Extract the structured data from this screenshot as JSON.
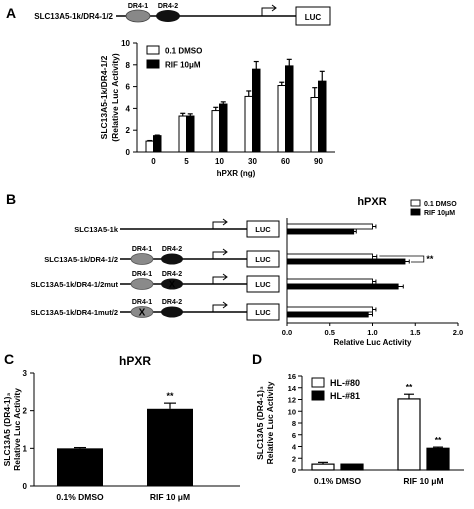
{
  "panels": {
    "A": {
      "letter": "A"
    },
    "B": {
      "letter": "B"
    },
    "C": {
      "letter": "C"
    },
    "D": {
      "letter": "D"
    }
  },
  "construct_a": {
    "name": "SLC13A5-1k/DR4-1/2",
    "dr1": "DR4-1",
    "dr2": "DR4-2",
    "reporter": "LUC"
  },
  "constructs_b": [
    {
      "name": "SLC13A5-1k",
      "dr1": "",
      "dr2": "",
      "mut1": false,
      "mut2": false
    },
    {
      "name": "SLC13A5-1k/DR4-1/2",
      "dr1": "DR4-1",
      "dr2": "DR4-2",
      "mut1": false,
      "mut2": false
    },
    {
      "name": "SLC13A5-1k/DR4-1/2mut",
      "dr1": "DR4-1",
      "dr2": "DR4-2",
      "mut1": false,
      "mut2": true
    },
    {
      "name": "SLC13A5-1k/DR4-1mut/2",
      "dr1": "DR4-1",
      "dr2": "DR4-2",
      "mut1": true,
      "mut2": false
    }
  ],
  "reporter_label": "LUC",
  "mutation_mark": "X",
  "significance": "**",
  "chart_data": [
    {
      "panel": "A",
      "type": "bar",
      "categories": [
        "0",
        "5",
        "10",
        "30",
        "60",
        "90"
      ],
      "series": [
        {
          "name": "0.1 DMSO",
          "values": [
            1.0,
            3.3,
            3.8,
            5.1,
            6.1,
            5.0
          ],
          "errors": [
            0.05,
            0.25,
            0.3,
            0.5,
            0.3,
            0.9
          ],
          "color": "#ffffff"
        },
        {
          "name": "RIF 10μM",
          "values": [
            1.5,
            3.3,
            4.4,
            7.6,
            7.9,
            6.5
          ],
          "errors": [
            0.05,
            0.2,
            0.2,
            0.7,
            0.6,
            0.9
          ],
          "color": "#000000"
        }
      ],
      "ylabel": "SLC13A5-1k/DR4-1/2 (Relative Luc Activity)",
      "ylabel_lines": [
        "SLC13A5-1k/DR4-1/2",
        "(Relative Luc Activity)"
      ],
      "xlabel": "hPXR (ng)",
      "ylim": [
        0,
        10
      ],
      "yticks": [
        "0",
        "2",
        "4",
        "6",
        "8",
        "10"
      ],
      "legend": "top-left"
    },
    {
      "panel": "B",
      "type": "bar",
      "orientation": "horizontal",
      "title": "hPXR",
      "categories": [
        "SLC13A5-1k",
        "SLC13A5-1k/DR4-1/2",
        "SLC13A5-1k/DR4-1/2mut",
        "SLC13A5-1k/DR4-1mut/2"
      ],
      "series": [
        {
          "name": "0.1 DMSO",
          "values": [
            1.0,
            1.0,
            1.0,
            1.0
          ],
          "errors": [
            0.04,
            0.05,
            0.04,
            0.04
          ],
          "color": "#ffffff"
        },
        {
          "name": "RIF 10μM",
          "values": [
            0.78,
            1.38,
            1.3,
            0.95
          ],
          "errors": [
            0.03,
            0.05,
            0.06,
            0.05
          ],
          "color": "#000000"
        }
      ],
      "xlabel": "Relative Luc Activity",
      "xlim": [
        0,
        2.0
      ],
      "xticks": [
        "0.0",
        "0.5",
        "1.0",
        "1.5",
        "2.0"
      ],
      "legend": "top-right"
    },
    {
      "panel": "C",
      "type": "bar",
      "title": "hPXR",
      "categories": [
        "0.1%  DMSO",
        "RIF 10 μM"
      ],
      "values": [
        1.0,
        2.05
      ],
      "errors": [
        0.02,
        0.15
      ],
      "ylabel": "SLC13A5 (DR4-1)₃ Relative Luc Activity",
      "ylabel_lines": [
        "SLC13A5 (DR4-1)₃",
        "Relative Luc Activity"
      ],
      "ylim": [
        0,
        3
      ],
      "yticks": [
        "0",
        "1",
        "2",
        "3"
      ]
    },
    {
      "panel": "D",
      "type": "bar",
      "categories": [
        "0.1%  DMSO",
        "RIF 10 μM"
      ],
      "series": [
        {
          "name": "HL-#80",
          "values": [
            1.0,
            12.1
          ],
          "errors": [
            0.3,
            0.8
          ],
          "color": "#ffffff"
        },
        {
          "name": "HL-#81",
          "values": [
            1.0,
            3.7
          ],
          "errors": [
            0.0,
            0.2
          ],
          "color": "#000000"
        }
      ],
      "ylabel": "SLC13A5 (DR4-1)₃ Relative Luc Activity",
      "ylabel_lines": [
        "SLC13A5 (DR4-1)₃",
        "Relative Luc Activity"
      ],
      "ylim": [
        0,
        16
      ],
      "yticks": [
        "0",
        "2",
        "4",
        "6",
        "8",
        "10",
        "12",
        "14",
        "16"
      ],
      "legend": "top-left"
    }
  ]
}
